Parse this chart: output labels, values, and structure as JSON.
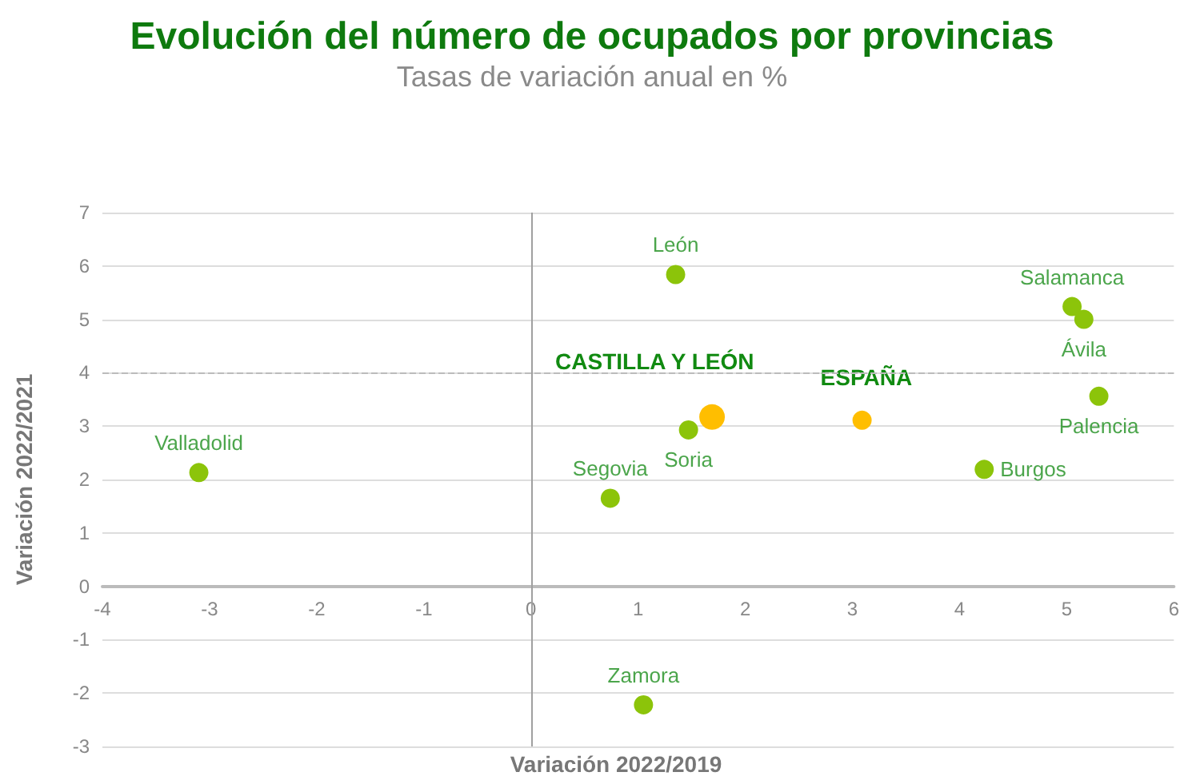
{
  "chart_data": {
    "type": "scatter",
    "title": "Evolución del número de ocupados por provincias",
    "subtitle": "Tasas de variación anual en %",
    "xlabel": "Variación 2022/2019",
    "ylabel": "Variación 2022/2021",
    "series": [
      {
        "color": "#8cc40a",
        "x": [
          1.35,
          5.05,
          5.16,
          5.3,
          4.23,
          1.47,
          0.74,
          -3.1,
          1.05
        ],
        "values": [
          5.84,
          5.24,
          5.0,
          3.56,
          2.19,
          2.93,
          1.65,
          2.13,
          -2.22
        ]
      },
      {
        "name": "CASTILLA Y LEÓN",
        "color": "#ffbe00",
        "x": [
          1.69
        ],
        "values": [
          3.17
        ]
      },
      {
        "name": "ESPAÑA",
        "color": "#ffbe00",
        "x": [
          3.09
        ],
        "values": [
          3.11
        ]
      }
    ],
    "annotations": [
      {
        "text": "León",
        "x": 1.35,
        "y": 5.84
      },
      {
        "text": "Salamanca",
        "x": 5.05,
        "y": 5.24
      },
      {
        "text": "Ávila",
        "x": 5.16,
        "y": 5.0
      },
      {
        "text": "Palencia",
        "x": 5.3,
        "y": 3.56
      },
      {
        "text": "Burgos",
        "x": 4.23,
        "y": 2.19
      },
      {
        "text": "Soria",
        "x": 1.47,
        "y": 2.93
      },
      {
        "text": "Segovia",
        "x": 0.74,
        "y": 1.65
      },
      {
        "text": "Valladolid",
        "x": -3.1,
        "y": 2.13
      },
      {
        "text": "Zamora",
        "x": 1.05,
        "y": -2.22
      }
    ],
    "xlim": [
      -4,
      6
    ],
    "xticks": [
      -4,
      -3,
      -2,
      -1,
      0,
      1,
      2,
      3,
      4,
      5,
      6
    ],
    "ylim": [
      -3,
      7
    ],
    "yticks": [
      -3,
      -2,
      -1,
      0,
      1,
      2,
      3,
      4,
      5,
      6,
      7
    ],
    "ref_lines": [
      {
        "axis": "x",
        "value": 0,
        "color": "#a0a0a0",
        "line_style": "solid"
      },
      {
        "axis": "y",
        "value": 4,
        "color": "#bbbbbb",
        "line_style": "dashed"
      }
    ],
    "grid": "y",
    "marker": "circle",
    "legend": false
  }
}
